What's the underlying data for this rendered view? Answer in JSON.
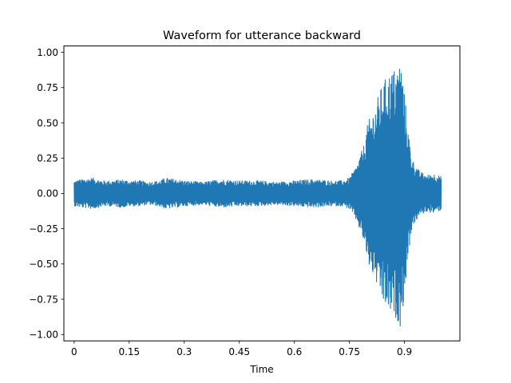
{
  "chart_data": {
    "type": "line",
    "title": "Waveform for utterance backward",
    "xlabel": "Time",
    "ylabel": "",
    "xlim": [
      -0.028,
      1.051
    ],
    "ylim": [
      -1.045,
      1.045
    ],
    "x_ticks": [
      0,
      0.15,
      0.3,
      0.45,
      0.6,
      0.75,
      0.9
    ],
    "x_tick_labels": [
      "0",
      "0.15",
      "0.3",
      "0.45",
      "0.6",
      "0.75",
      "0.9"
    ],
    "y_ticks": [
      1.0,
      0.75,
      0.5,
      0.25,
      0.0,
      -0.25,
      -0.5,
      -0.75,
      -1.0
    ],
    "y_tick_labels": [
      "1.00",
      "0.75",
      "0.50",
      "0.25",
      "0.00",
      "−0.25",
      "−0.50",
      "−0.75",
      "−1.00"
    ],
    "grid": false,
    "legend": "none",
    "series": [
      {
        "color": "#1f77b4",
        "duration": 1.0,
        "envelope_x": [
          0,
          0.02,
          0.05,
          0.08,
          0.1,
          0.13,
          0.15,
          0.18,
          0.2,
          0.23,
          0.25,
          0.28,
          0.3,
          0.35,
          0.4,
          0.45,
          0.5,
          0.55,
          0.6,
          0.65,
          0.7,
          0.73,
          0.75,
          0.77,
          0.79,
          0.8,
          0.82,
          0.84,
          0.86,
          0.87,
          0.88,
          0.89,
          0.9,
          0.91,
          0.92,
          0.94,
          0.96,
          0.98,
          1.0
        ],
        "envelope_y": [
          0.09,
          0.1,
          0.11,
          0.09,
          0.09,
          0.1,
          0.09,
          0.09,
          0.08,
          0.09,
          0.11,
          0.1,
          0.09,
          0.08,
          0.1,
          0.09,
          0.09,
          0.08,
          0.09,
          0.1,
          0.09,
          0.09,
          0.11,
          0.2,
          0.35,
          0.5,
          0.62,
          0.78,
          0.86,
          0.88,
          0.9,
          0.95,
          0.72,
          0.45,
          0.25,
          0.16,
          0.13,
          0.14,
          0.12
        ]
      }
    ]
  }
}
